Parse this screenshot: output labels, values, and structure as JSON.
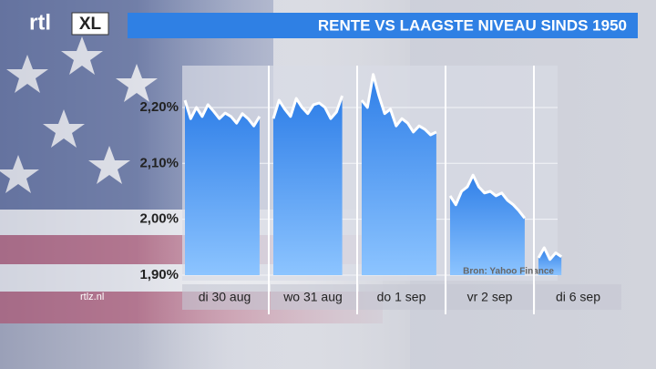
{
  "logo": {
    "left": "rtl",
    "right": "XL"
  },
  "website": "rtlz.nl",
  "chart_data": {
    "type": "intraday-line",
    "title": "RENTE VS LAAGSTE NIVEAU SINDS 1950",
    "source": "Bron: Yahoo Finance",
    "categories": [
      "di 30 aug",
      "wo 31 aug",
      "do 1 sep",
      "vr 2 sep",
      "di 6 sep"
    ],
    "intraday": [
      [
        2.213,
        2.18,
        2.2,
        2.184,
        2.205,
        2.193,
        2.18,
        2.19,
        2.184,
        2.172,
        2.189,
        2.18,
        2.167,
        2.184
      ],
      [
        2.18,
        2.213,
        2.197,
        2.184,
        2.216,
        2.2,
        2.189,
        2.205,
        2.208,
        2.2,
        2.18,
        2.192,
        2.221
      ],
      [
        2.213,
        2.2,
        2.259,
        2.221,
        2.189,
        2.197,
        2.167,
        2.18,
        2.172,
        2.156,
        2.167,
        2.161,
        2.151,
        2.156
      ],
      [
        2.042,
        2.026,
        2.05,
        2.058,
        2.079,
        2.058,
        2.047,
        2.05,
        2.042,
        2.047,
        2.034,
        2.026,
        2.015,
        2.002
      ],
      [
        1.931,
        1.949,
        1.928,
        1.94,
        1.933
      ]
    ],
    "color": "#3f8ff0",
    "line_color": "#ffffff",
    "ylim": [
      1.9,
      2.27
    ],
    "yticks": [
      {
        "value": 1.9,
        "label": "1,90%"
      },
      {
        "value": 2.0,
        "label": "2,00%"
      },
      {
        "value": 2.1,
        "label": "2,10%"
      },
      {
        "value": 2.2,
        "label": "2,20%"
      }
    ],
    "grid": true
  }
}
